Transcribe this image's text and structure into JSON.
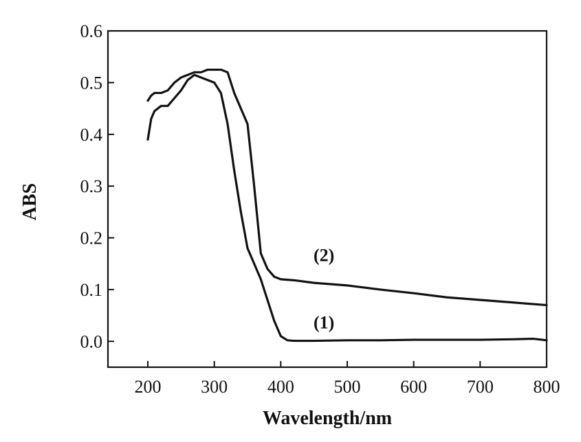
{
  "chart_data": {
    "type": "line",
    "title": "",
    "xlabel": "Wavelength/nm",
    "ylabel": "ABS",
    "xlim": [
      140,
      800
    ],
    "ylim": [
      -0.05,
      0.6
    ],
    "x_ticks": [
      200,
      300,
      400,
      500,
      600,
      700,
      800
    ],
    "x_tick_labels": [
      "200",
      "300",
      "400",
      "500",
      "600",
      "700",
      "800"
    ],
    "y_ticks": [
      0.0,
      0.1,
      0.2,
      0.3,
      0.4,
      0.5,
      0.6
    ],
    "y_tick_labels": [
      "0.0",
      "0.1",
      "0.2",
      "0.3",
      "0.4",
      "0.5",
      "0.6"
    ],
    "grid": false,
    "legend": "none",
    "series": [
      {
        "name": "(1)",
        "label": "(1)",
        "label_at": [
          465,
          0.025
        ],
        "x": [
          200,
          205,
          210,
          220,
          230,
          240,
          250,
          260,
          270,
          280,
          290,
          300,
          310,
          320,
          330,
          340,
          350,
          360,
          370,
          380,
          390,
          400,
          410,
          420,
          450,
          500,
          550,
          600,
          650,
          700,
          750,
          780,
          800
        ],
        "y": [
          0.39,
          0.43,
          0.445,
          0.455,
          0.455,
          0.47,
          0.485,
          0.505,
          0.515,
          0.51,
          0.505,
          0.5,
          0.48,
          0.42,
          0.33,
          0.25,
          0.18,
          0.15,
          0.12,
          0.08,
          0.04,
          0.01,
          0.002,
          0.001,
          0.001,
          0.002,
          0.002,
          0.003,
          0.003,
          0.003,
          0.004,
          0.005,
          0.002
        ]
      },
      {
        "name": "(2)",
        "label": "(2)",
        "label_at": [
          465,
          0.155
        ],
        "x": [
          200,
          205,
          210,
          220,
          230,
          240,
          250,
          260,
          270,
          280,
          290,
          300,
          310,
          320,
          330,
          340,
          350,
          360,
          370,
          380,
          390,
          400,
          420,
          450,
          500,
          550,
          600,
          650,
          700,
          750,
          800
        ],
        "y": [
          0.465,
          0.475,
          0.48,
          0.48,
          0.485,
          0.5,
          0.51,
          0.515,
          0.52,
          0.52,
          0.525,
          0.525,
          0.525,
          0.52,
          0.48,
          0.45,
          0.42,
          0.3,
          0.17,
          0.14,
          0.125,
          0.12,
          0.118,
          0.113,
          0.108,
          0.1,
          0.093,
          0.085,
          0.08,
          0.075,
          0.07
        ]
      }
    ]
  }
}
